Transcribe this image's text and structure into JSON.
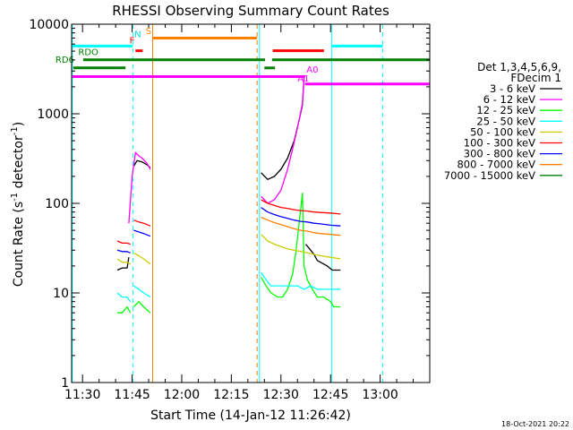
{
  "chart_data": {
    "type": "line",
    "title": "RHESSI Observing Summary Count Rates",
    "xlabel": "Start Time (14-Jan-12 11:26:42)",
    "ylabel_main": "Count Rate (s",
    "ylabel_sup1": "-1",
    "ylabel_mid": " detector",
    "ylabel_sup2": "-1",
    "ylabel_end": ")",
    "y_scale": "log",
    "ylim": [
      1,
      10000
    ],
    "xlim_minutes": [
      686.7,
      795.0
    ],
    "x_ticks": [
      {
        "t": 690,
        "label": "11:30"
      },
      {
        "t": 705,
        "label": "11:45"
      },
      {
        "t": 720,
        "label": "12:00"
      },
      {
        "t": 735,
        "label": "12:15"
      },
      {
        "t": 750,
        "label": "12:30"
      },
      {
        "t": 765,
        "label": "12:45"
      },
      {
        "t": 780,
        "label": "13:00"
      }
    ],
    "y_ticks": [
      {
        "v": 1,
        "label": "1"
      },
      {
        "v": 10,
        "label": "10"
      },
      {
        "v": 100,
        "label": "100"
      },
      {
        "v": 1000,
        "label": "1000"
      },
      {
        "v": 10000,
        "label": "10000"
      }
    ],
    "legend_title": [
      "Det 1,3,4,5,6,9,",
      "FDecim 1"
    ],
    "footer_date": "18-Oct-2021 20:22",
    "series": [
      {
        "name": "3 - 6 keV",
        "color": "#000000",
        "segments": [
          [
            [
              700.5,
              18
            ],
            [
              702,
              19
            ],
            [
              703.5,
              19
            ],
            [
              704,
              25
            ]
          ],
          [
            [
              705.5,
              260
            ],
            [
              706.5,
              300
            ],
            [
              708,
              290
            ],
            [
              709.5,
              270
            ],
            [
              710.5,
              250
            ]
          ],
          [
            [
              744,
              220
            ],
            [
              746,
              185
            ],
            [
              748,
              200
            ],
            [
              750,
              240
            ],
            [
              752,
              320
            ],
            [
              754,
              500
            ],
            [
              755.5,
              850
            ],
            [
              756.5,
              1250
            ],
            [
              757,
              2500
            ]
          ],
          [
            [
              757.5,
              35
            ],
            [
              759,
              30
            ],
            [
              760,
              27
            ],
            [
              761,
              23
            ],
            [
              762,
              22
            ],
            [
              764,
              20
            ],
            [
              765.5,
              18
            ],
            [
              768,
              18
            ]
          ]
        ]
      },
      {
        "name": "6 - 12 keV",
        "color": "#ff00ff",
        "segments": [
          [
            [
              704,
              60
            ],
            [
              705,
              200
            ],
            [
              706,
              370
            ],
            [
              707,
              340
            ],
            [
              708,
              320
            ],
            [
              709.5,
              280
            ],
            [
              710.5,
              240
            ]
          ],
          [
            [
              744,
              120
            ],
            [
              746,
              100
            ],
            [
              748,
              110
            ],
            [
              750,
              140
            ],
            [
              752,
              240
            ],
            [
              753.5,
              400
            ],
            [
              755,
              700
            ],
            [
              756.5,
              1300
            ],
            [
              757,
              2500
            ]
          ]
        ]
      },
      {
        "name": "12 - 25 keV",
        "color": "#00ff00",
        "segments": [
          [
            [
              700.5,
              6
            ],
            [
              702,
              6
            ],
            [
              703.5,
              7
            ],
            [
              704.5,
              6
            ]
          ],
          [
            [
              705.5,
              7
            ],
            [
              707,
              8
            ],
            [
              708.5,
              7
            ],
            [
              710.5,
              6
            ]
          ],
          [
            [
              744,
              15
            ],
            [
              745.5,
              12
            ],
            [
              747,
              10
            ],
            [
              749,
              9
            ],
            [
              750.5,
              9
            ],
            [
              752,
              11
            ],
            [
              753.5,
              16
            ],
            [
              754.5,
              28
            ],
            [
              755.5,
              60
            ],
            [
              756.5,
              130
            ],
            [
              757,
              20
            ],
            [
              758,
              14
            ],
            [
              759.5,
              11
            ],
            [
              761,
              9
            ],
            [
              763,
              9
            ],
            [
              765,
              8
            ],
            [
              766,
              7
            ],
            [
              768,
              7
            ]
          ]
        ]
      },
      {
        "name": "25 - 50 keV",
        "color": "#00ffff",
        "segments": [
          [
            [
              700.5,
              10
            ],
            [
              702,
              9
            ],
            [
              703.5,
              9
            ],
            [
              704.5,
              8
            ]
          ],
          [
            [
              705.5,
              12
            ],
            [
              707,
              11
            ],
            [
              708.5,
              10
            ],
            [
              710.5,
              9
            ]
          ],
          [
            [
              744,
              17
            ],
            [
              745.5,
              14
            ],
            [
              747,
              12
            ],
            [
              749,
              12
            ],
            [
              751,
              12
            ],
            [
              753,
              12
            ],
            [
              755,
              12
            ],
            [
              757,
              11
            ],
            [
              759,
              12
            ],
            [
              761,
              11
            ],
            [
              763,
              11
            ],
            [
              765,
              11
            ],
            [
              768,
              11
            ]
          ]
        ]
      },
      {
        "name": "50 - 100 keV",
        "color": "#cccc00",
        "segments": [
          [
            [
              700.5,
              24
            ],
            [
              702,
              22
            ],
            [
              703.5,
              22
            ],
            [
              704.5,
              21
            ]
          ],
          [
            [
              705.5,
              28
            ],
            [
              707,
              26
            ],
            [
              708.5,
              24
            ],
            [
              710.5,
              21
            ]
          ],
          [
            [
              744,
              45
            ],
            [
              746,
              38
            ],
            [
              748,
              35
            ],
            [
              750,
              33
            ],
            [
              752,
              31
            ],
            [
              754,
              30
            ],
            [
              756,
              29
            ],
            [
              758,
              28
            ],
            [
              760,
              27
            ],
            [
              762,
              26
            ],
            [
              765,
              25
            ],
            [
              768,
              24
            ]
          ]
        ]
      },
      {
        "name": "100 - 300 keV",
        "color": "#ff0000",
        "segments": [
          [
            [
              700.5,
              38
            ],
            [
              702,
              36
            ],
            [
              703.5,
              36
            ],
            [
              704.5,
              35
            ]
          ],
          [
            [
              705.5,
              65
            ],
            [
              707,
              62
            ],
            [
              708.5,
              60
            ],
            [
              710.5,
              56
            ]
          ],
          [
            [
              744,
              110
            ],
            [
              746,
              100
            ],
            [
              748,
              95
            ],
            [
              750,
              90
            ],
            [
              752,
              88
            ],
            [
              754,
              85
            ],
            [
              756,
              83
            ],
            [
              758,
              82
            ],
            [
              760,
              80
            ],
            [
              762,
              79
            ],
            [
              765,
              78
            ],
            [
              768,
              76
            ]
          ]
        ]
      },
      {
        "name": "300 - 800 keV",
        "color": "#0000ff",
        "segments": [
          [
            [
              700.5,
              30
            ],
            [
              702,
              29
            ],
            [
              703.5,
              29
            ],
            [
              704.5,
              28
            ]
          ],
          [
            [
              705.5,
              50
            ],
            [
              707,
              48
            ],
            [
              708.5,
              46
            ],
            [
              710.5,
              43
            ]
          ],
          [
            [
              744,
              90
            ],
            [
              746,
              80
            ],
            [
              748,
              75
            ],
            [
              750,
              71
            ],
            [
              752,
              68
            ],
            [
              754,
              65
            ],
            [
              756,
              63
            ],
            [
              758,
              62
            ],
            [
              760,
              60
            ],
            [
              762,
              59
            ],
            [
              765,
              57
            ],
            [
              768,
              56
            ]
          ]
        ]
      },
      {
        "name": "800 - 7000 keV",
        "color": "#ff8000",
        "segments": [
          [
            [
              744,
              70
            ],
            [
              746,
              65
            ],
            [
              748,
              61
            ],
            [
              750,
              58
            ],
            [
              752,
              55
            ],
            [
              754,
              52
            ],
            [
              756,
              50
            ],
            [
              758,
              49
            ],
            [
              760,
              47
            ],
            [
              762,
              46
            ],
            [
              765,
              45
            ],
            [
              768,
              44
            ]
          ]
        ]
      },
      {
        "name": "7000 - 15000 keV",
        "color": "#008000",
        "segments": []
      }
    ],
    "flag_bars": [
      {
        "label": "N",
        "label_color": "#00dddd",
        "color": "#00ffff",
        "width": 3,
        "y": 5700,
        "spans": [
          [
            686.9,
            705.2
          ],
          [
            765.3,
            780.8
          ]
        ],
        "label_t": 705.7,
        "label_y": 7200
      },
      {
        "label": "S",
        "label_color": "#ff8000",
        "color": "#ff8000",
        "width": 3,
        "y": 7000,
        "spans": [
          [
            711.2,
            742.8
          ]
        ],
        "label_t": 709.1,
        "label_y": 7800
      },
      {
        "label": "F",
        "label_color": "#ff0000",
        "color": "#ff0000",
        "width": 3,
        "y": 5050,
        "spans": [
          [
            706.0,
            708.2
          ],
          [
            747.5,
            763.0
          ]
        ],
        "label_t": 704.2,
        "label_y": 6100
      },
      {
        "label": "RDO",
        "label_color": "#008000",
        "color": "#008000",
        "width": 3,
        "y": 4000,
        "spans": [
          [
            690.2,
            745.2
          ],
          [
            747.3,
            795.0
          ]
        ],
        "label_t": 688.7,
        "label_y": 4500
      },
      {
        "label": "RD6",
        "label_color": "#008000",
        "color": "#008000",
        "width": 3,
        "y": 3250,
        "spans": [
          [
            687.2,
            703.0
          ],
          [
            745.0,
            748.2
          ]
        ],
        "label_t": 681.8,
        "label_y": 3700
      },
      {
        "label": "A1",
        "label_color": "#ff00ff",
        "color": "#ff00ff",
        "width": 3,
        "y": 2600,
        "spans": [
          [
            686.9,
            757.3
          ]
        ],
        "label_t": 755.0,
        "label_y": 2300
      },
      {
        "label": "A0",
        "label_color": "#ff00ff",
        "color": "#ff00ff",
        "width": 3,
        "y": 2150,
        "spans": [
          [
            757.3,
            795.0
          ]
        ],
        "label_t": 757.7,
        "label_y": 2900
      }
    ],
    "vertical_lines": [
      {
        "t": 686.9,
        "color": "#00ffff",
        "dashed": false
      },
      {
        "t": 705.2,
        "color": "#00ffff",
        "dashed": true
      },
      {
        "t": 711.2,
        "color": "#ff8000",
        "dashed": false
      },
      {
        "t": 742.8,
        "color": "#ff8000",
        "dashed": true
      },
      {
        "t": 743.5,
        "color": "#00ffff",
        "dashed": false
      },
      {
        "t": 765.3,
        "color": "#00ffff",
        "dashed": false
      },
      {
        "t": 780.8,
        "color": "#00ffff",
        "dashed": true
      }
    ],
    "grid": false,
    "legend_position": "right"
  }
}
